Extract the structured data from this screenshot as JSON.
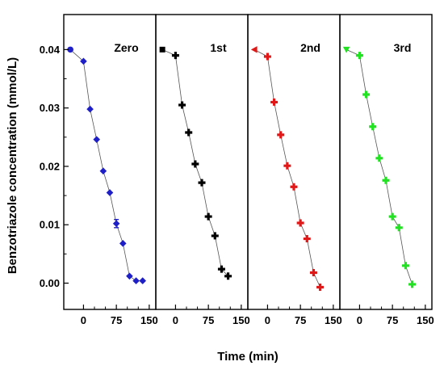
{
  "chart_data": {
    "type": "line",
    "ylabel": "Benzotriazole concentration (mmol/L)",
    "xlabel": "Time (min)",
    "ylim": [
      -0.0045,
      0.046
    ],
    "yticks": [
      0.0,
      0.01,
      0.02,
      0.03,
      0.04
    ],
    "ytick_labels": [
      "0.00",
      "0.01",
      "0.02",
      "0.03",
      "0.04"
    ],
    "xlim": [
      -45,
      165
    ],
    "xticks": [
      0,
      75,
      150
    ],
    "xticks_minor": [
      25,
      50,
      100,
      125
    ],
    "xtick_labels": [
      "0",
      "75",
      "150"
    ],
    "grid": false,
    "panels": [
      {
        "label": "Zero",
        "color": "#1f1fc8",
        "marker": "diamond",
        "x": [
          -30,
          0,
          15,
          30,
          45,
          60,
          75,
          90,
          105,
          120,
          135
        ],
        "y": [
          0.04,
          0.038,
          0.0298,
          0.0246,
          0.0192,
          0.0155,
          0.0102,
          0.0068,
          0.0012,
          0.0004,
          0.0004
        ],
        "err": [
          0,
          0,
          0,
          0,
          0,
          0,
          0.0007,
          0,
          0,
          0,
          0
        ]
      },
      {
        "label": "1st",
        "color": "#000000",
        "marker": "square",
        "x": [
          -30,
          0,
          15,
          30,
          45,
          60,
          75,
          90,
          105,
          120
        ],
        "y": [
          0.04,
          0.039,
          0.0305,
          0.0258,
          0.0204,
          0.0172,
          0.0114,
          0.0081,
          0.0024,
          0.0012
        ],
        "err": [
          0,
          0,
          0,
          0,
          0,
          0,
          0,
          0,
          0,
          0
        ]
      },
      {
        "label": "2nd",
        "color": "#e01818",
        "marker": "triangle-left",
        "x": [
          -30,
          0,
          15,
          30,
          45,
          60,
          75,
          90,
          105,
          120
        ],
        "y": [
          0.04,
          0.0388,
          0.031,
          0.0254,
          0.0201,
          0.0165,
          0.0103,
          0.0076,
          0.0018,
          -0.0007
        ],
        "err": [
          0,
          0,
          0,
          0,
          0,
          0,
          0,
          0,
          0,
          0
        ]
      },
      {
        "label": "3rd",
        "color": "#22e022",
        "marker": "triangle-down",
        "x": [
          -30,
          0,
          15,
          30,
          45,
          60,
          75,
          90,
          105,
          120
        ],
        "y": [
          0.04,
          0.039,
          0.0323,
          0.0268,
          0.0214,
          0.0176,
          0.0114,
          0.0095,
          0.003,
          -0.0002
        ],
        "err": [
          0,
          0,
          0,
          0,
          0,
          0,
          0,
          0,
          0,
          0
        ]
      }
    ]
  }
}
